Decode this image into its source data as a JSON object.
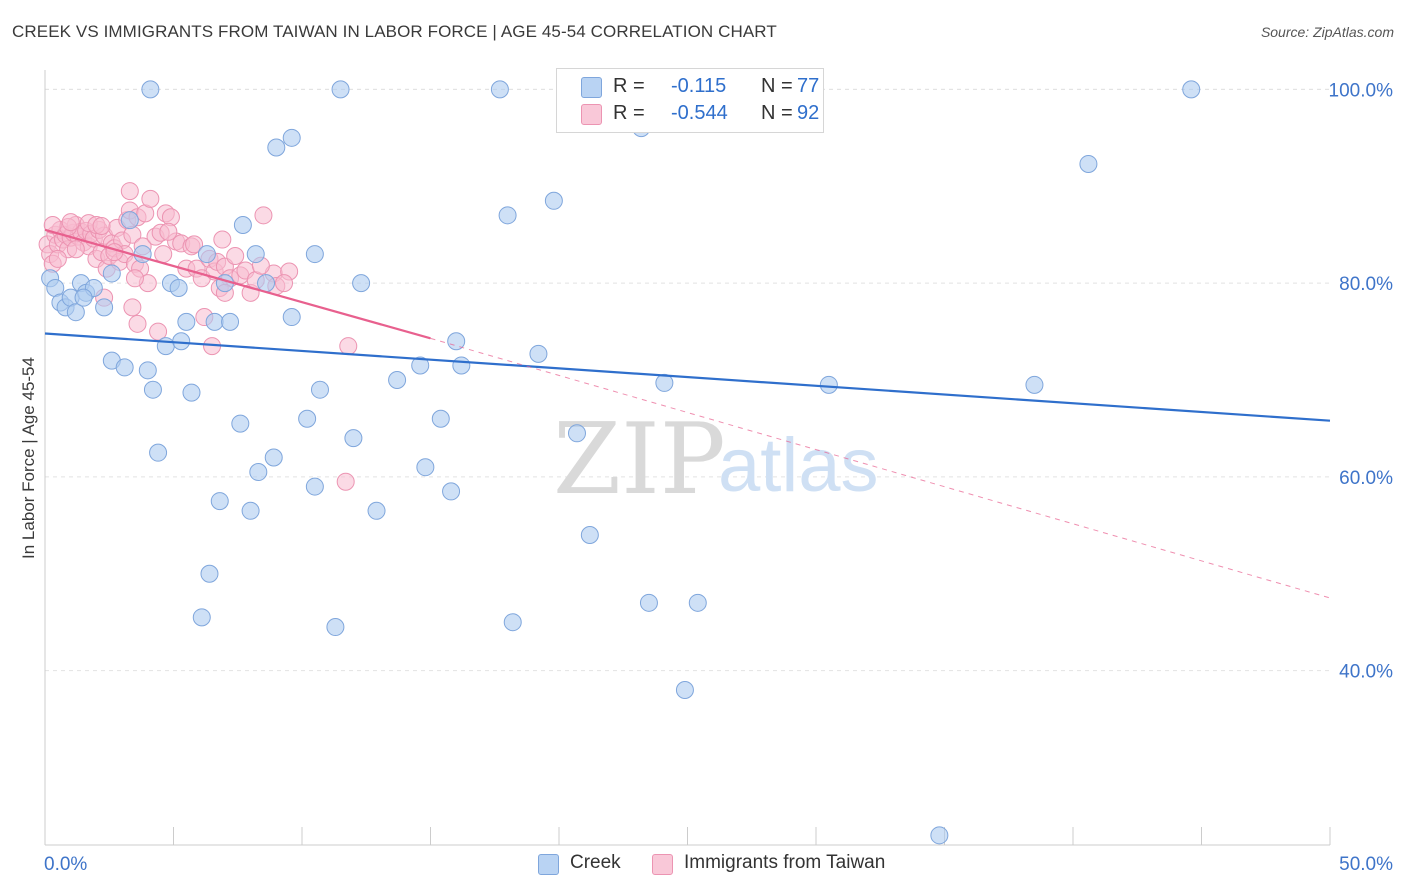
{
  "header": {
    "title": "CREEK VS IMMIGRANTS FROM TAIWAN IN LABOR FORCE | AGE 45-54 CORRELATION CHART",
    "source": "Source: ZipAtlas.com"
  },
  "watermark": {
    "zip": "ZIP",
    "atlas": "atlas"
  },
  "legend": {
    "rows": [
      {
        "r_label": "R =",
        "r_value": "-0.115",
        "n_label": "N =",
        "n_value": "77"
      },
      {
        "r_label": "R =",
        "r_value": "-0.544",
        "n_label": "N =",
        "n_value": "92"
      }
    ],
    "bottom": [
      "Creek",
      "Immigrants from Taiwan"
    ]
  },
  "chart_data": {
    "type": "scatter",
    "title": "CREEK VS IMMIGRANTS FROM TAIWAN IN LABOR FORCE | AGE 45-54 CORRELATION CHART",
    "xlabel": "",
    "ylabel": "In Labor Force | Age 45-54",
    "xlim": [
      0,
      50
    ],
    "ylim": [
      22,
      102
    ],
    "x_tick_labels": [
      "0.0%",
      "50.0%"
    ],
    "y_ticks": [
      40,
      60,
      80,
      100
    ],
    "y_tick_labels": [
      "40.0%",
      "60.0%",
      "80.0%",
      "100.0%"
    ],
    "grid": true,
    "legend_position": "top-center",
    "colors": {
      "creek_fill": "#aecbf0",
      "creek_stroke": "#7fa6dc",
      "creek_line": "#2f6fcc",
      "taiwan_fill": "#f7bcd0",
      "taiwan_stroke": "#ec94b2",
      "taiwan_line": "#e8608e",
      "tick_label": "#3e74c9",
      "grid": "#e2e2e2"
    },
    "series": [
      {
        "name": "Creek",
        "r": -0.115,
        "n": 77,
        "trend": {
          "x": [
            0,
            50
          ],
          "y": [
            74.8,
            65.8
          ]
        },
        "points": [
          [
            0.2,
            80.5
          ],
          [
            0.4,
            79.5
          ],
          [
            0.6,
            78
          ],
          [
            0.8,
            77.5
          ],
          [
            1.0,
            78.5
          ],
          [
            1.2,
            77
          ],
          [
            1.4,
            80
          ],
          [
            1.6,
            79
          ],
          [
            1.9,
            79.5
          ],
          [
            2.3,
            77.5
          ],
          [
            2.6,
            81
          ],
          [
            2.6,
            72
          ],
          [
            3.1,
            71.3
          ],
          [
            3.3,
            86.5
          ],
          [
            3.8,
            83
          ],
          [
            4.0,
            71
          ],
          [
            4.2,
            69
          ],
          [
            4.4,
            62.5
          ],
          [
            4.7,
            73.5
          ],
          [
            4.9,
            80
          ],
          [
            5.3,
            74
          ],
          [
            5.5,
            76
          ],
          [
            5.7,
            68.7
          ],
          [
            6.1,
            45.5
          ],
          [
            6.3,
            83
          ],
          [
            6.4,
            50
          ],
          [
            6.6,
            76
          ],
          [
            6.8,
            57.5
          ],
          [
            7.0,
            80
          ],
          [
            7.2,
            76
          ],
          [
            7.6,
            65.5
          ],
          [
            7.7,
            86
          ],
          [
            8.0,
            56.5
          ],
          [
            8.2,
            83
          ],
          [
            8.3,
            60.5
          ],
          [
            8.6,
            80
          ],
          [
            8.9,
            62
          ],
          [
            9.0,
            94
          ],
          [
            9.6,
            76.5
          ],
          [
            9.6,
            95
          ],
          [
            10.2,
            66
          ],
          [
            10.5,
            59
          ],
          [
            10.7,
            69
          ],
          [
            10.5,
            83
          ],
          [
            11.3,
            44.5
          ],
          [
            11.5,
            100
          ],
          [
            12.0,
            64
          ],
          [
            12.3,
            80
          ],
          [
            12.9,
            56.5
          ],
          [
            13.7,
            70
          ],
          [
            14.6,
            71.5
          ],
          [
            14.8,
            61
          ],
          [
            15.4,
            66
          ],
          [
            15.8,
            58.5
          ],
          [
            16.0,
            74
          ],
          [
            16.2,
            71.5
          ],
          [
            17.7,
            100
          ],
          [
            18.0,
            87
          ],
          [
            18.2,
            45
          ],
          [
            19.2,
            72.7
          ],
          [
            19.8,
            88.5
          ],
          [
            20.7,
            64.5
          ],
          [
            21.2,
            54
          ],
          [
            23.2,
            96
          ],
          [
            23.5,
            47
          ],
          [
            24.1,
            69.7
          ],
          [
            24.9,
            38
          ],
          [
            25.4,
            47
          ],
          [
            25.8,
            100
          ],
          [
            30.5,
            69.5
          ],
          [
            34.8,
            23
          ],
          [
            38.5,
            69.5
          ],
          [
            40.6,
            92.3
          ],
          [
            44.6,
            100
          ],
          [
            4.1,
            100
          ],
          [
            1.5,
            78.5
          ],
          [
            5.2,
            79.5
          ]
        ]
      },
      {
        "name": "Immigrants from Taiwan",
        "r": -0.544,
        "n": 92,
        "trend": {
          "x": [
            0,
            15,
            50
          ],
          "y": [
            85.5,
            74.3,
            47.5
          ]
        },
        "points": [
          [
            0.1,
            84
          ],
          [
            0.2,
            83
          ],
          [
            0.3,
            82
          ],
          [
            0.4,
            85
          ],
          [
            0.5,
            84
          ],
          [
            0.6,
            85.5
          ],
          [
            0.7,
            84.5
          ],
          [
            0.8,
            85
          ],
          [
            0.9,
            83.5
          ],
          [
            1.0,
            84.7
          ],
          [
            1.1,
            85.2
          ],
          [
            1.2,
            86
          ],
          [
            1.3,
            84.8
          ],
          [
            1.4,
            85.3
          ],
          [
            1.5,
            84.2
          ],
          [
            1.6,
            85.4
          ],
          [
            1.7,
            83.8
          ],
          [
            1.8,
            85.1
          ],
          [
            1.9,
            84.6
          ],
          [
            2.0,
            82.5
          ],
          [
            2.1,
            85.5
          ],
          [
            2.2,
            83.2
          ],
          [
            2.3,
            84.9
          ],
          [
            2.4,
            81.5
          ],
          [
            2.5,
            82.8
          ],
          [
            2.6,
            84.1
          ],
          [
            2.7,
            83.6
          ],
          [
            2.8,
            85.7
          ],
          [
            2.9,
            82.2
          ],
          [
            3.0,
            84.4
          ],
          [
            3.1,
            83
          ],
          [
            3.2,
            86.5
          ],
          [
            3.3,
            87.5
          ],
          [
            3.4,
            85
          ],
          [
            3.5,
            82
          ],
          [
            3.6,
            86.8
          ],
          [
            3.7,
            81.5
          ],
          [
            3.8,
            83.8
          ],
          [
            3.9,
            87.2
          ],
          [
            4.0,
            80
          ],
          [
            4.1,
            88.7
          ],
          [
            4.3,
            84.8
          ],
          [
            4.5,
            85.2
          ],
          [
            4.6,
            83
          ],
          [
            4.7,
            87.2
          ],
          [
            4.9,
            86.8
          ],
          [
            5.1,
            84.3
          ],
          [
            5.3,
            84.1
          ],
          [
            5.5,
            81.5
          ],
          [
            5.7,
            83.8
          ],
          [
            5.9,
            81.5
          ],
          [
            6.1,
            80.5
          ],
          [
            6.2,
            76.5
          ],
          [
            6.4,
            82.5
          ],
          [
            6.6,
            81.2
          ],
          [
            6.7,
            82.2
          ],
          [
            6.9,
            84.5
          ],
          [
            7.0,
            81.7
          ],
          [
            7.2,
            80.5
          ],
          [
            7.4,
            82.8
          ],
          [
            7.6,
            80.8
          ],
          [
            7.8,
            81.3
          ],
          [
            8.0,
            79
          ],
          [
            8.2,
            80.3
          ],
          [
            8.5,
            87
          ],
          [
            8.9,
            81
          ],
          [
            9.0,
            79.7
          ],
          [
            9.5,
            81.2
          ],
          [
            3.3,
            89.5
          ],
          [
            3.5,
            80.5
          ],
          [
            3.6,
            75.8
          ],
          [
            4.4,
            75
          ],
          [
            6.5,
            73.5
          ],
          [
            11.8,
            73.5
          ],
          [
            11.7,
            59.5
          ],
          [
            2.3,
            78.5
          ],
          [
            3.4,
            77.5
          ],
          [
            5.8,
            84
          ],
          [
            1.2,
            83.5
          ],
          [
            0.9,
            85.8
          ],
          [
            1.7,
            86.2
          ],
          [
            2.0,
            86
          ],
          [
            2.7,
            83.2
          ],
          [
            4.8,
            85.3
          ],
          [
            6.8,
            79.5
          ],
          [
            8.4,
            81.8
          ],
          [
            0.3,
            86
          ],
          [
            2.2,
            85.9
          ],
          [
            7.0,
            79
          ],
          [
            9.3,
            80
          ],
          [
            0.5,
            82.5
          ],
          [
            1.0,
            86.3
          ]
        ]
      }
    ]
  }
}
